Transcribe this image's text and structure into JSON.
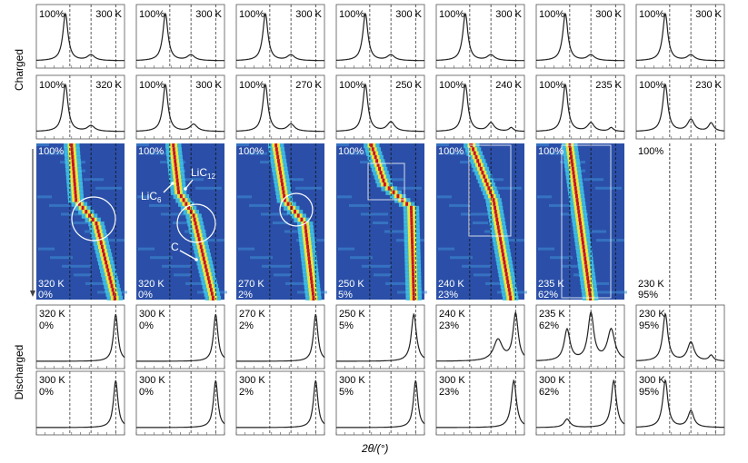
{
  "figure": {
    "row_labels": {
      "charged": "Charged",
      "discharged": "Discharged"
    },
    "x_axis_label": "2θ/(°)"
  },
  "chart_data": {
    "type": "line",
    "layout": "5x7 panel grid of XRD patterns; middle row are heatmaps (time arrow downward)",
    "columns": [
      {
        "charged_1": {
          "pct": "100%",
          "temp": "300 K"
        },
        "charged_2": {
          "pct": "100%",
          "temp": "320 K"
        },
        "heatmap": {
          "top_pct": "100%",
          "temp": "320 K",
          "bottom_pct": "0%",
          "annotations": []
        },
        "discharged_1": {
          "temp": "320 K",
          "pct": "0%"
        },
        "discharged_2": {
          "temp": "300 K",
          "pct": "0%"
        }
      },
      {
        "charged_1": {
          "pct": "100%",
          "temp": "300 K"
        },
        "charged_2": {
          "pct": "100%",
          "temp": "300 K"
        },
        "heatmap": {
          "top_pct": "100%",
          "temp": "320 K",
          "bottom_pct": "0%",
          "annotations": [
            {
              "main": "LiC",
              "sub": "12"
            },
            {
              "main": "LiC",
              "sub": "6"
            },
            {
              "main": "C",
              "sub": ""
            }
          ]
        },
        "discharged_1": {
          "temp": "300 K",
          "pct": "0%"
        },
        "discharged_2": {
          "temp": "300 K",
          "pct": "0%"
        }
      },
      {
        "charged_1": {
          "pct": "100%",
          "temp": "300 K"
        },
        "charged_2": {
          "pct": "100%",
          "temp": "270 K"
        },
        "heatmap": {
          "top_pct": "100%",
          "temp": "270 K",
          "bottom_pct": "2%",
          "annotations": []
        },
        "discharged_1": {
          "temp": "270 K",
          "pct": "2%"
        },
        "discharged_2": {
          "temp": "300 K",
          "pct": "2%"
        }
      },
      {
        "charged_1": {
          "pct": "100%",
          "temp": "300 K"
        },
        "charged_2": {
          "pct": "100%",
          "temp": "250 K"
        },
        "heatmap": {
          "top_pct": "100%",
          "temp": "250 K",
          "bottom_pct": "5%",
          "annotations": []
        },
        "discharged_1": {
          "temp": "250 K",
          "pct": "5%"
        },
        "discharged_2": {
          "temp": "300 K",
          "pct": "5%"
        }
      },
      {
        "charged_1": {
          "pct": "100%",
          "temp": "300 K"
        },
        "charged_2": {
          "pct": "100%",
          "temp": "240 K"
        },
        "heatmap": {
          "top_pct": "100%",
          "temp": "240 K",
          "bottom_pct": "23%",
          "annotations": []
        },
        "discharged_1": {
          "temp": "240 K",
          "pct": "23%"
        },
        "discharged_2": {
          "temp": "300 K",
          "pct": "23%"
        }
      },
      {
        "charged_1": {
          "pct": "100%",
          "temp": "300 K"
        },
        "charged_2": {
          "pct": "100%",
          "temp": "235 K"
        },
        "heatmap": {
          "top_pct": "100%",
          "temp": "235 K",
          "bottom_pct": "62%",
          "annotations": []
        },
        "discharged_1": {
          "temp": "235 K",
          "pct": "62%"
        },
        "discharged_2": {
          "temp": "300 K",
          "pct": "62%"
        }
      },
      {
        "charged_1": {
          "pct": "100%",
          "temp": "300 K"
        },
        "charged_2": {
          "pct": "100%",
          "temp": "230 K"
        },
        "heatmap": {
          "top_pct": "100%",
          "temp": "230 K",
          "bottom_pct": "95%",
          "annotations": [],
          "no_map": true
        },
        "discharged_1": {
          "temp": "230 K",
          "pct": "95%"
        },
        "discharged_2": {
          "temp": "300 K",
          "pct": "95%"
        }
      }
    ],
    "x_range_rel": [
      0,
      1
    ],
    "reference_lines_rel": [
      0.38,
      0.62,
      0.9
    ],
    "peak_profiles": {
      "charged_1": [
        {
          "c": 0.33,
          "h": 1.0,
          "w": 0.035
        },
        {
          "c": 0.62,
          "h": 0.12,
          "w": 0.05
        }
      ],
      "charged_2_by_col": [
        [
          {
            "c": 0.33,
            "h": 1.0,
            "w": 0.035
          },
          {
            "c": 0.62,
            "h": 0.12,
            "w": 0.05
          }
        ],
        [
          {
            "c": 0.33,
            "h": 1.0,
            "w": 0.035
          },
          {
            "c": 0.65,
            "h": 0.15,
            "w": 0.05
          }
        ],
        [
          {
            "c": 0.33,
            "h": 1.0,
            "w": 0.035
          },
          {
            "c": 0.62,
            "h": 0.15,
            "w": 0.05
          }
        ],
        [
          {
            "c": 0.33,
            "h": 1.0,
            "w": 0.035
          },
          {
            "c": 0.62,
            "h": 0.2,
            "w": 0.05
          }
        ],
        [
          {
            "c": 0.33,
            "h": 1.0,
            "w": 0.035
          },
          {
            "c": 0.62,
            "h": 0.18,
            "w": 0.045
          },
          {
            "c": 0.85,
            "h": 0.08,
            "w": 0.03
          }
        ],
        [
          {
            "c": 0.33,
            "h": 1.0,
            "w": 0.035
          },
          {
            "c": 0.62,
            "h": 0.18,
            "w": 0.045
          },
          {
            "c": 0.85,
            "h": 0.08,
            "w": 0.03
          }
        ],
        [
          {
            "c": 0.33,
            "h": 1.0,
            "w": 0.035
          },
          {
            "c": 0.62,
            "h": 0.25,
            "w": 0.045
          },
          {
            "c": 0.85,
            "h": 0.18,
            "w": 0.035
          }
        ]
      ],
      "discharged_by_col": [
        [
          {
            "c": 0.9,
            "h": 1.0,
            "w": 0.03
          }
        ],
        [
          {
            "c": 0.9,
            "h": 1.0,
            "w": 0.03
          }
        ],
        [
          {
            "c": 0.9,
            "h": 1.0,
            "w": 0.03
          }
        ],
        [
          {
            "c": 0.88,
            "h": 1.0,
            "w": 0.035
          }
        ],
        [
          {
            "c": 0.7,
            "h": 0.45,
            "w": 0.06
          },
          {
            "c": 0.9,
            "h": 1.0,
            "w": 0.035
          }
        ],
        [
          {
            "c": 0.35,
            "h": 0.6,
            "w": 0.04
          },
          {
            "c": 0.62,
            "h": 0.9,
            "w": 0.04
          },
          {
            "c": 0.85,
            "h": 0.6,
            "w": 0.05
          }
        ],
        [
          {
            "c": 0.33,
            "h": 1.0,
            "w": 0.035
          },
          {
            "c": 0.62,
            "h": 0.4,
            "w": 0.045
          },
          {
            "c": 0.85,
            "h": 0.12,
            "w": 0.03
          }
        ]
      ],
      "discharged_rt_by_col": [
        [
          {
            "c": 0.9,
            "h": 1.0,
            "w": 0.03
          }
        ],
        [
          {
            "c": 0.9,
            "h": 1.0,
            "w": 0.03
          }
        ],
        [
          {
            "c": 0.9,
            "h": 1.0,
            "w": 0.03
          }
        ],
        [
          {
            "c": 0.9,
            "h": 1.0,
            "w": 0.03
          }
        ],
        [
          {
            "c": 0.88,
            "h": 1.0,
            "w": 0.035
          }
        ],
        [
          {
            "c": 0.35,
            "h": 0.18,
            "w": 0.04
          },
          {
            "c": 0.88,
            "h": 1.0,
            "w": 0.035
          }
        ],
        [
          {
            "c": 0.33,
            "h": 1.0,
            "w": 0.035
          },
          {
            "c": 0.62,
            "h": 0.35,
            "w": 0.04
          }
        ]
      ]
    },
    "heatmap_traces_rel": [
      [
        {
          "t": 0.0,
          "x": 0.4
        },
        {
          "t": 0.35,
          "x": 0.45
        },
        {
          "t": 0.5,
          "x": 0.68
        },
        {
          "t": 1.0,
          "x": 0.9
        }
      ],
      [
        {
          "t": 0.0,
          "x": 0.42
        },
        {
          "t": 0.3,
          "x": 0.48
        },
        {
          "t": 0.45,
          "x": 0.65
        },
        {
          "t": 1.0,
          "x": 0.88
        }
      ],
      [
        {
          "t": 0.0,
          "x": 0.45
        },
        {
          "t": 0.35,
          "x": 0.55
        },
        {
          "t": 0.5,
          "x": 0.78
        },
        {
          "t": 1.0,
          "x": 0.88
        }
      ],
      [
        {
          "t": 0.0,
          "x": 0.4
        },
        {
          "t": 0.25,
          "x": 0.55
        },
        {
          "t": 0.4,
          "x": 0.85
        },
        {
          "t": 1.0,
          "x": 0.88
        }
      ],
      [
        {
          "t": 0.0,
          "x": 0.4
        },
        {
          "t": 0.35,
          "x": 0.65
        },
        {
          "t": 1.0,
          "x": 0.85
        }
      ],
      [
        {
          "t": 0.0,
          "x": 0.38
        },
        {
          "t": 1.0,
          "x": 0.62
        }
      ]
    ],
    "colors": {
      "line": "#222222",
      "heat_low": "#2b4fa8",
      "heat_mid": "#3fc3e6",
      "heat_hi": "#e6e83c",
      "heat_peak": "#c8102e",
      "overlay": "#ffffff"
    }
  }
}
